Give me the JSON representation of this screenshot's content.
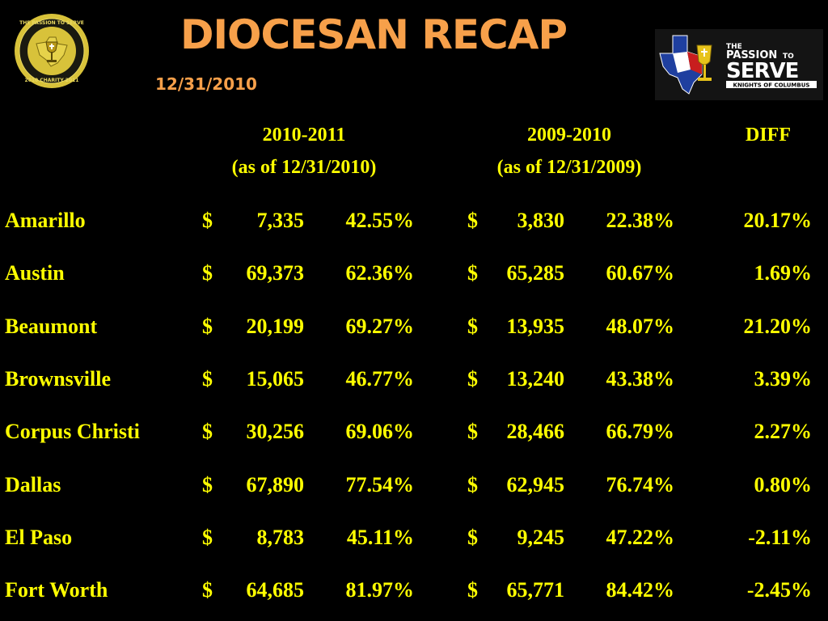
{
  "title": "DIOCESAN RECAP",
  "subtitle": "12/31/2010",
  "seal": {
    "icon": "passion-to-serve-seal-icon",
    "text_top": "THE PASSION TO SERVE",
    "text_bottom": "2010 CHARITY 2011"
  },
  "logo": {
    "icon": "knights-of-columbus-logo-icon",
    "line1": "THE",
    "line1b": "PASSION",
    "line1c": "TO",
    "line2": "SERVE",
    "line3": "KNIGHTS OF COLUMBUS"
  },
  "columns": {
    "current": {
      "year": "2010-2011",
      "asof": "(as of   12/31/2010)"
    },
    "previous": {
      "year": "2009-2010",
      "asof": "(as of   12/31/2009)"
    },
    "diff": "DIFF"
  },
  "currency": "$",
  "rows": [
    {
      "name": "Amarillo",
      "cur_amount": "7,335",
      "cur_pct": "42.55%",
      "prev_amount": "3,830",
      "prev_pct": "22.38%",
      "diff": "20.17%"
    },
    {
      "name": "Austin",
      "cur_amount": "69,373",
      "cur_pct": "62.36%",
      "prev_amount": "65,285",
      "prev_pct": "60.67%",
      "diff": "1.69%"
    },
    {
      "name": "Beaumont",
      "cur_amount": "20,199",
      "cur_pct": "69.27%",
      "prev_amount": "13,935",
      "prev_pct": "48.07%",
      "diff": "21.20%"
    },
    {
      "name": "Brownsville",
      "cur_amount": "15,065",
      "cur_pct": "46.77%",
      "prev_amount": "13,240",
      "prev_pct": "43.38%",
      "diff": "3.39%"
    },
    {
      "name": "Corpus Christi",
      "cur_amount": "30,256",
      "cur_pct": "69.06%",
      "prev_amount": "28,466",
      "prev_pct": "66.79%",
      "diff": "2.27%"
    },
    {
      "name": "Dallas",
      "cur_amount": "67,890",
      "cur_pct": "77.54%",
      "prev_amount": "62,945",
      "prev_pct": "76.74%",
      "diff": "0.80%"
    },
    {
      "name": "El Paso",
      "cur_amount": "8,783",
      "cur_pct": "45.11%",
      "prev_amount": "9,245",
      "prev_pct": "47.22%",
      "diff": "-2.11%"
    },
    {
      "name": "Fort Worth",
      "cur_amount": "64,685",
      "cur_pct": "81.97%",
      "prev_amount": "65,771",
      "prev_pct": "84.42%",
      "diff": "-2.45%"
    }
  ],
  "colors": {
    "background": "#000000",
    "title": "#f7a04a",
    "table_text": "#ffff00"
  }
}
